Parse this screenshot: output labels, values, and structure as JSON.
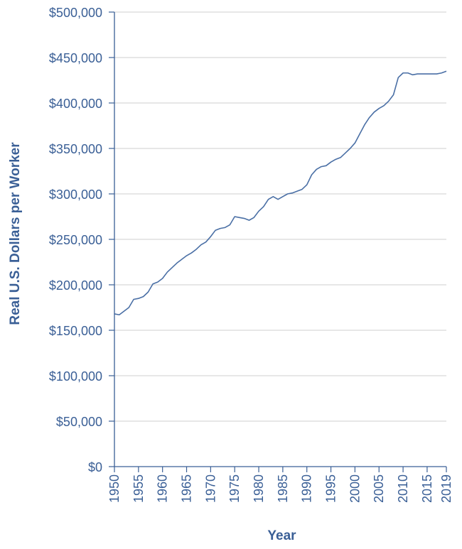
{
  "chart_data": {
    "type": "line",
    "title": "",
    "xlabel": "Year",
    "ylabel": "Real U.S. Dollars per Worker",
    "xlim": [
      1950,
      2019
    ],
    "ylim": [
      0,
      500000
    ],
    "x_ticks": [
      "1950",
      "1955",
      "1960",
      "1965",
      "1970",
      "1975",
      "1980",
      "1985",
      "1990",
      "1995",
      "2000",
      "2005",
      "2010",
      "2015",
      "2019"
    ],
    "x_tick_values": [
      1950,
      1955,
      1960,
      1965,
      1970,
      1975,
      1980,
      1985,
      1990,
      1995,
      2000,
      2005,
      2010,
      2015,
      2019
    ],
    "y_ticks": [
      "$0",
      "$50,000",
      "$100,000",
      "$150,000",
      "$200,000",
      "$250,000",
      "$300,000",
      "$350,000",
      "$400,000",
      "$450,000",
      "$500,000"
    ],
    "y_tick_values": [
      0,
      50000,
      100000,
      150000,
      200000,
      250000,
      300000,
      350000,
      400000,
      450000,
      500000
    ],
    "grid": "horizontal",
    "colors": {
      "line": "#4a6fa5",
      "axis": "#3a5f96",
      "grid": "#cfcfcf",
      "text": "#3a5f96"
    },
    "series": [
      {
        "x": [
          1950,
          1951,
          1952,
          1953,
          1954,
          1955,
          1956,
          1957,
          1958,
          1959,
          1960,
          1961,
          1962,
          1963,
          1964,
          1965,
          1966,
          1967,
          1968,
          1969,
          1970,
          1971,
          1972,
          1973,
          1974,
          1975,
          1976,
          1977,
          1978,
          1979,
          1980,
          1981,
          1982,
          1983,
          1984,
          1985,
          1986,
          1987,
          1988,
          1989,
          1990,
          1991,
          1992,
          1993,
          1994,
          1995,
          1996,
          1997,
          1998,
          1999,
          2000,
          2001,
          2002,
          2003,
          2004,
          2005,
          2006,
          2007,
          2008,
          2009,
          2010,
          2011,
          2012,
          2013,
          2014,
          2015,
          2016,
          2017,
          2018,
          2019
        ],
        "values": [
          168000,
          167000,
          171000,
          175000,
          184000,
          185000,
          187000,
          192000,
          201000,
          203000,
          207000,
          214000,
          219000,
          224000,
          228000,
          232000,
          235000,
          239000,
          244000,
          247000,
          253000,
          260000,
          262000,
          263000,
          266000,
          275000,
          274000,
          273000,
          271000,
          274000,
          281000,
          286000,
          294000,
          297000,
          294000,
          297000,
          300000,
          301000,
          303000,
          305000,
          310000,
          321000,
          327000,
          330000,
          331000,
          335000,
          338000,
          340000,
          345000,
          350000,
          356000,
          366000,
          376000,
          384000,
          390000,
          394000,
          397000,
          402000,
          409000,
          428000,
          433000,
          433000,
          431000,
          432000,
          432000,
          432000,
          432000,
          432000,
          433000,
          435000
        ]
      }
    ]
  }
}
